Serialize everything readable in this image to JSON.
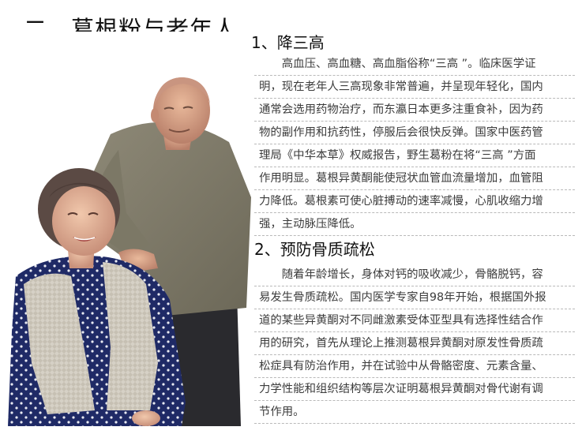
{
  "page": {
    "title": "二、葛根粉与老年人"
  },
  "sections": [
    {
      "heading": "1、降三高",
      "lines": [
        "　　高血压、高血糖、高血脂俗称“三高 ”。临床医学证",
        "明，现在老年人三高现象非常普遍，并呈现年轻化，国内",
        "通常会选用药物治疗，而东瀛日本更多注重食补，因为药",
        "物的副作用和抗药性，停服后会很快反弹。国家中医药管",
        "理局《中华本草》权威报告，野生葛粉在将“三高 ”方面",
        "作用明显。葛根异黄酮能使冠状血管血流量增加，血管阻",
        "力降低。葛根素可使心脏搏动的速率减慢，心肌收缩力增",
        "强，主动脉压降低。"
      ]
    },
    {
      "heading": "2、预防骨质疏松",
      "lines": [
        "　　随着年龄增长，身体对钙的吸收减少，骨骼脱钙，容",
        "易发生骨质疏松。国内医学专家自98年开始，根据国外报",
        "道的某些异黄酮对不同雌激素受体亚型具有选择性结合作",
        "用的研究，首先从理论上推测葛根异黄酮对原发性骨质疏",
        "松症具有防治作用，并在试验中从骨骼密度、元素含量、",
        "力学性能和组织结构等层次证明葛根异黄酮对骨代谢有调",
        "节作用。"
      ]
    }
  ]
}
